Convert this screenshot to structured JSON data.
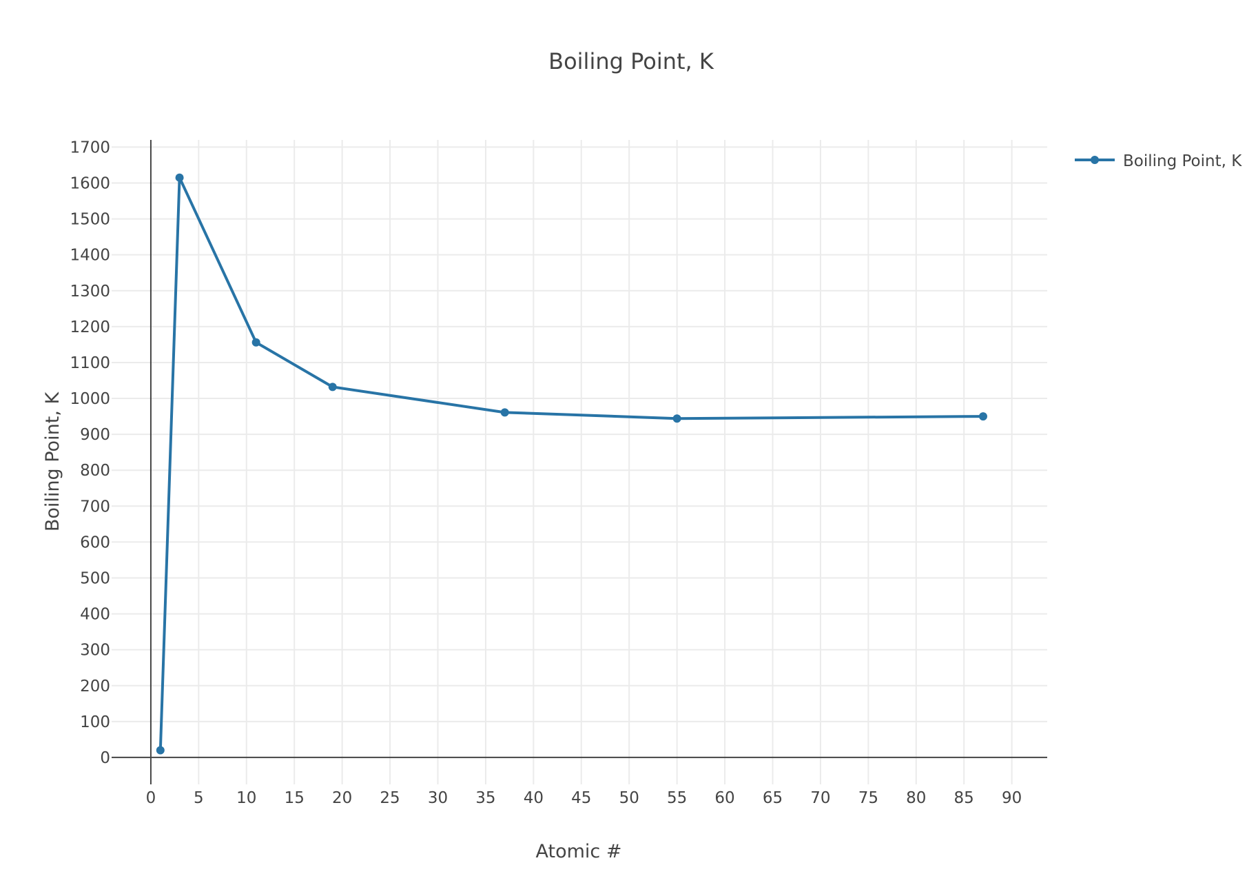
{
  "chart_data": {
    "type": "line",
    "title": "Boiling Point, K",
    "xlabel": "Atomic #",
    "ylabel": "Boiling Point, K",
    "xlim": [
      -4.1,
      93.7
    ],
    "ylim": [
      -75,
      1720
    ],
    "x_ticks": [
      0,
      5,
      10,
      15,
      20,
      25,
      30,
      35,
      40,
      45,
      50,
      55,
      60,
      65,
      70,
      75,
      80,
      85,
      90
    ],
    "y_ticks": [
      0,
      100,
      200,
      300,
      400,
      500,
      600,
      700,
      800,
      900,
      1000,
      1100,
      1200,
      1300,
      1400,
      1500,
      1600,
      1700
    ],
    "grid": true,
    "legend": "top-right",
    "series": [
      {
        "name": "Boiling Point, K",
        "color": "#2874a6",
        "x": [
          1,
          3,
          11,
          19,
          37,
          55,
          87
        ],
        "y": [
          20,
          1615,
          1156,
          1032,
          961,
          944,
          950
        ]
      }
    ]
  }
}
